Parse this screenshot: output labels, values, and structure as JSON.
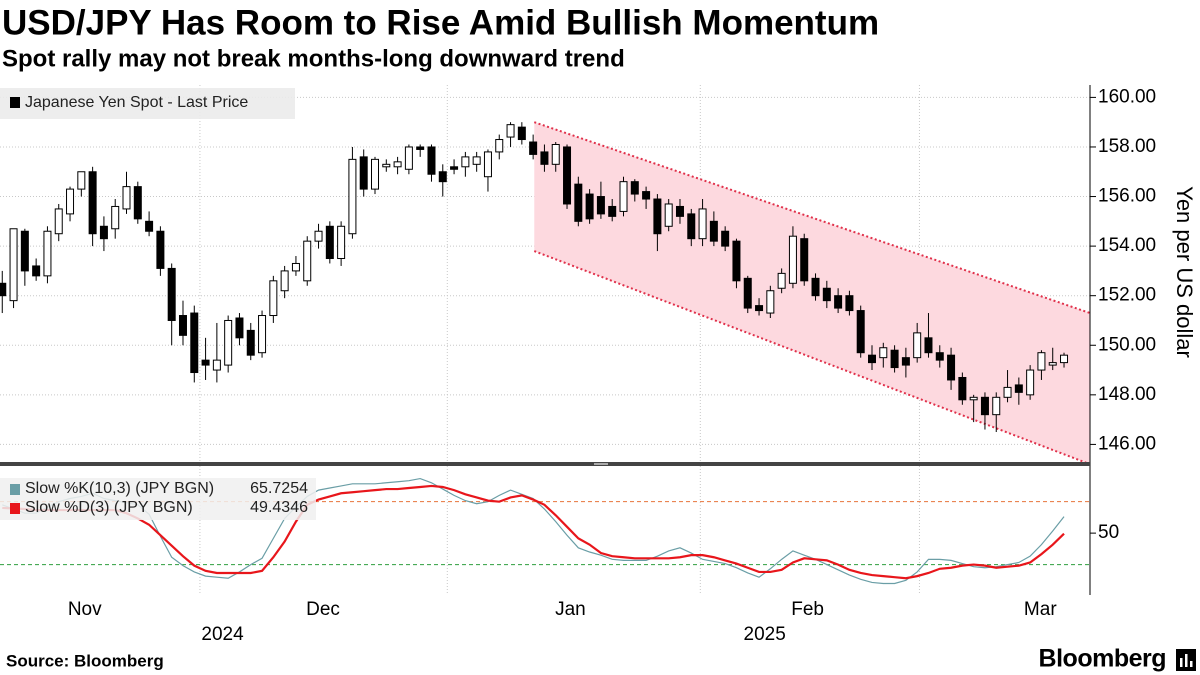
{
  "chart_data": [
    {
      "type": "candlestick",
      "title": "USD/JPY Has Room to Rise Amid Bullish Momentum",
      "subtitle": "Spot rally may not break months-long downward trend",
      "source": "Source: Bloomberg",
      "brand": "Bloomberg",
      "y_label": "Yen per US dollar",
      "series": [
        {
          "name": "Japanese Yen Spot - Last Price",
          "color": "#000000",
          "open": [
            152.5,
            151.8,
            154.6,
            153.2,
            152.8,
            154.5,
            155.3,
            156.3,
            157.0,
            154.8,
            154.7,
            155.5,
            156.4,
            155.0,
            154.6,
            153.1,
            151.2,
            151.3,
            149.4,
            149.0,
            149.2,
            151.1,
            150.6,
            149.7,
            151.2,
            152.2,
            153.0,
            152.6,
            154.2,
            154.8,
            153.5,
            154.5,
            157.6,
            156.3,
            157.2,
            157.2,
            157.1,
            158.0,
            158.0,
            157.0,
            157.2,
            157.2,
            157.3,
            156.8,
            157.8,
            158.4,
            158.8,
            158.2,
            157.8,
            157.3,
            158.0,
            156.5,
            156.1,
            156.0,
            155.6,
            155.4,
            156.6,
            156.2,
            155.9,
            154.8,
            155.6,
            155.3,
            154.3,
            155.0,
            154.6,
            154.2,
            152.7,
            151.6,
            151.3,
            152.3,
            152.5,
            154.3,
            152.7,
            152.3,
            152.0,
            152.0,
            151.4,
            149.6,
            149.5,
            149.8,
            149.5,
            149.5,
            150.3,
            149.7,
            149.6,
            148.7,
            147.8,
            147.9,
            147.2,
            147.9,
            148.4,
            148.0,
            149.0,
            149.2,
            149.3
          ],
          "high": [
            153.0,
            154.7,
            154.7,
            153.5,
            154.8,
            155.7,
            156.4,
            157.0,
            157.2,
            155.2,
            155.9,
            157.0,
            156.6,
            155.4,
            154.8,
            153.3,
            151.8,
            151.6,
            150.3,
            150.9,
            151.2,
            151.3,
            150.9,
            151.4,
            152.8,
            153.2,
            153.6,
            154.4,
            154.9,
            155.0,
            155.0,
            158.0,
            157.9,
            157.6,
            157.5,
            157.6,
            158.1,
            158.1,
            158.1,
            157.3,
            157.5,
            157.8,
            157.8,
            157.9,
            158.5,
            159.0,
            159.0,
            158.5,
            158.1,
            158.2,
            158.1,
            156.8,
            156.3,
            156.6,
            155.9,
            156.8,
            156.7,
            156.4,
            156.1,
            155.9,
            155.9,
            155.5,
            155.9,
            155.4,
            154.8,
            154.3,
            152.8,
            151.9,
            152.4,
            153.1,
            154.8,
            154.5,
            152.9,
            152.6,
            152.3,
            152.2,
            151.6,
            150.0,
            150.1,
            150.0,
            149.9,
            150.9,
            151.3,
            150.0,
            149.9,
            148.9,
            148.0,
            148.1,
            148.1,
            149.0,
            148.7,
            149.2,
            149.8,
            149.9,
            149.7
          ],
          "low": [
            151.3,
            151.5,
            152.4,
            152.6,
            152.5,
            154.2,
            155.0,
            156.0,
            154.0,
            153.8,
            154.3,
            155.3,
            154.9,
            154.4,
            152.8,
            150.0,
            150.0,
            148.5,
            148.6,
            148.5,
            148.9,
            150.0,
            149.4,
            149.5,
            150.9,
            151.9,
            152.8,
            152.4,
            153.9,
            153.3,
            153.2,
            154.3,
            156.0,
            156.1,
            157.0,
            156.9,
            156.9,
            157.6,
            156.6,
            156.0,
            156.9,
            156.8,
            157.0,
            156.2,
            157.5,
            158.0,
            158.1,
            157.5,
            157.0,
            157.0,
            155.5,
            154.8,
            154.9,
            155.1,
            155.0,
            155.2,
            155.8,
            155.5,
            153.8,
            154.6,
            154.9,
            154.0,
            154.0,
            154.0,
            153.8,
            152.3,
            151.3,
            151.2,
            151.1,
            152.1,
            152.3,
            152.4,
            151.8,
            151.5,
            151.3,
            151.2,
            149.5,
            149.0,
            149.1,
            148.9,
            148.7,
            149.3,
            149.5,
            149.1,
            148.2,
            147.6,
            146.9,
            146.6,
            146.5,
            147.7,
            147.6,
            147.8,
            148.6,
            149.0,
            149.1
          ],
          "close": [
            152.0,
            154.7,
            153.0,
            152.8,
            154.6,
            155.5,
            156.3,
            157.0,
            154.5,
            154.3,
            155.6,
            156.4,
            155.1,
            154.6,
            153.1,
            151.0,
            150.4,
            148.9,
            149.2,
            149.4,
            151.0,
            150.3,
            149.6,
            151.2,
            152.6,
            153.0,
            153.3,
            154.2,
            154.6,
            153.5,
            154.8,
            157.5,
            156.3,
            157.5,
            157.3,
            157.4,
            158.0,
            157.9,
            156.9,
            156.6,
            157.1,
            157.6,
            157.6,
            157.8,
            158.3,
            158.9,
            158.3,
            157.7,
            157.3,
            158.1,
            155.7,
            155.0,
            155.1,
            155.3,
            155.2,
            156.6,
            156.1,
            155.9,
            154.5,
            155.7,
            155.2,
            154.3,
            155.5,
            154.2,
            154.0,
            152.6,
            151.5,
            151.4,
            152.2,
            152.9,
            154.4,
            152.6,
            152.0,
            151.8,
            151.5,
            151.4,
            149.7,
            149.3,
            149.9,
            149.1,
            149.2,
            150.5,
            149.7,
            149.4,
            148.6,
            147.8,
            147.9,
            147.2,
            147.9,
            148.3,
            148.1,
            149.0,
            149.7,
            149.3,
            149.6
          ]
        }
      ],
      "xlim": [
        -0.2,
        96.3
      ],
      "ylim": [
        145.25,
        160.5
      ],
      "yticks": [
        {
          "value": 146,
          "label": "146.00"
        },
        {
          "value": 148,
          "label": "148.00"
        },
        {
          "value": 150,
          "label": "150.00"
        },
        {
          "value": 152,
          "label": "152.00"
        },
        {
          "value": 154,
          "label": "154.00"
        },
        {
          "value": 156,
          "label": "156.00"
        },
        {
          "value": 158,
          "label": "158.00"
        },
        {
          "value": 160,
          "label": "160.00"
        }
      ],
      "grid": true,
      "channel": {
        "color": "#e0304a",
        "fill": "#fdd9df",
        "upper": [
          [
            47.1,
            159.0
          ],
          [
            96.3,
            151.3
          ]
        ],
        "lower": [
          [
            47.1,
            153.8
          ],
          [
            96.3,
            145.2
          ]
        ]
      }
    },
    {
      "type": "line",
      "series": [
        {
          "name": "Slow %K(10,3) (JPY BGN)",
          "color": "#6a9ea6",
          "values": [
            77,
            73,
            69,
            69,
            75,
            80,
            83,
            85,
            88,
            83,
            81,
            79,
            77,
            68,
            47,
            27,
            19,
            13,
            9,
            8,
            7,
            13,
            20,
            26,
            45,
            64,
            75,
            85,
            91,
            93,
            95,
            97,
            97,
            97,
            98,
            99,
            100,
            102,
            98,
            92,
            86,
            81,
            78,
            80,
            86,
            91,
            87,
            83,
            73,
            61,
            48,
            36,
            32,
            29,
            25,
            24,
            24,
            24,
            28,
            33,
            36,
            31,
            25,
            23,
            21,
            17,
            12,
            8,
            16,
            25,
            33,
            29,
            25,
            20,
            15,
            10,
            6,
            3,
            2,
            2,
            5,
            13,
            25,
            25,
            24,
            21,
            18,
            17,
            18,
            20,
            22,
            28,
            39,
            52,
            65.7254
          ]
        },
        {
          "name": "Slow %D(3) (JPY BGN)",
          "color": "#e8161b",
          "values": [
            74,
            73.5,
            73,
            72,
            72,
            72,
            72,
            72,
            72,
            72,
            72,
            69,
            64,
            58,
            48,
            38,
            28,
            19,
            14,
            12,
            12,
            12,
            12,
            14,
            27,
            42,
            61,
            77,
            82,
            85,
            88,
            89,
            90,
            91,
            92,
            92,
            93,
            94,
            95,
            94,
            91,
            87,
            84,
            81,
            80,
            84,
            86,
            82,
            77,
            67,
            56,
            45,
            39,
            31,
            28,
            27,
            26,
            26,
            26,
            26,
            27,
            29,
            29,
            27,
            24,
            21,
            17,
            13,
            13,
            15,
            22,
            26,
            25,
            24,
            20,
            15,
            12,
            10,
            9,
            8,
            7,
            9,
            12,
            16,
            17,
            19,
            20,
            19,
            17,
            18,
            19,
            22,
            30,
            39,
            49.4346
          ]
        }
      ],
      "xlim": [
        -0.2,
        96.3
      ],
      "ylim": [
        -9,
        114
      ],
      "yticks": [
        50
      ],
      "reference_lines": [
        {
          "value": 80,
          "color": "#e8743b"
        },
        {
          "value": 20,
          "color": "#2e9e3e"
        }
      ],
      "xticks": [
        {
          "value": 7.3,
          "label": "Nov"
        },
        {
          "value": 28.4,
          "label": "Dec"
        },
        {
          "value": 50.3,
          "label": "Jan"
        },
        {
          "value": 71.3,
          "label": "Feb"
        },
        {
          "value": 91.9,
          "label": "Mar"
        }
      ],
      "year_labels": [
        {
          "value": 19.5,
          "label": "2024"
        },
        {
          "value": 67.5,
          "label": "2025"
        }
      ],
      "xgrid": [
        17.5,
        39.4,
        61.8,
        81.2
      ]
    }
  ]
}
